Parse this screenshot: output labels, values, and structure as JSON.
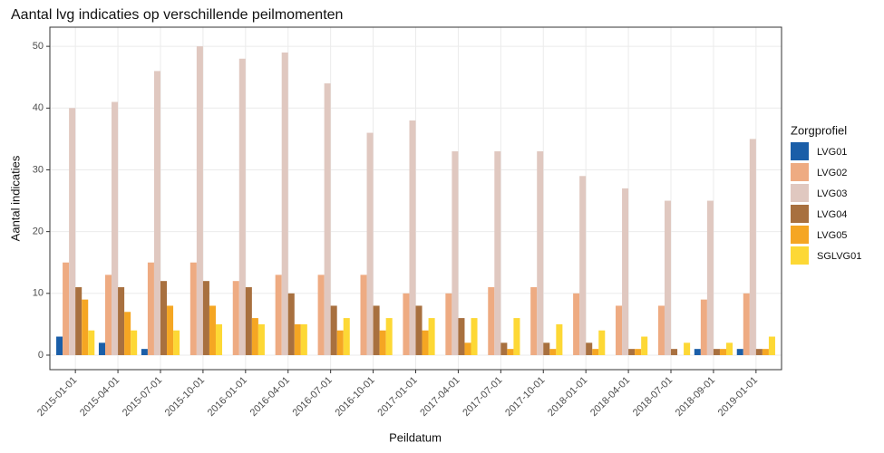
{
  "chart_data": {
    "type": "bar",
    "title": "Aantal lvg indicaties op verschillende peilmomenten",
    "x_label": "Peildatum",
    "y_label": "Aantal indicaties",
    "legend_title": "Zorgprofiel",
    "categories": [
      "2015-01-01",
      "2015-04-01",
      "2015-07-01",
      "2015-10-01",
      "2016-01-01",
      "2016-04-01",
      "2016-07-01",
      "2016-10-01",
      "2017-01-01",
      "2017-04-01",
      "2017-07-01",
      "2017-10-01",
      "2018-01-01",
      "2018-04-01",
      "2018-07-01",
      "2018-09-01",
      "2019-01-01"
    ],
    "series": [
      {
        "name": "LVG01",
        "color": "#1a5ea8",
        "values": [
          3,
          2,
          1,
          null,
          null,
          null,
          null,
          null,
          null,
          null,
          null,
          null,
          null,
          null,
          null,
          1,
          1
        ]
      },
      {
        "name": "LVG02",
        "color": "#eeab82",
        "values": [
          15,
          13,
          15,
          15,
          12,
          13,
          13,
          13,
          10,
          10,
          11,
          11,
          10,
          8,
          8,
          9,
          10
        ]
      },
      {
        "name": "LVG03",
        "color": "#e0c8c0",
        "values": [
          40,
          41,
          46,
          50,
          48,
          49,
          44,
          36,
          38,
          33,
          33,
          33,
          29,
          27,
          25,
          25,
          35
        ]
      },
      {
        "name": "LVG04",
        "color": "#a8703f",
        "values": [
          11,
          11,
          12,
          12,
          11,
          10,
          8,
          8,
          8,
          6,
          2,
          2,
          2,
          1,
          1,
          1,
          1
        ]
      },
      {
        "name": "LVG05",
        "color": "#f5a623",
        "values": [
          9,
          7,
          8,
          8,
          6,
          5,
          4,
          4,
          4,
          2,
          1,
          1,
          1,
          1,
          null,
          1,
          1
        ]
      },
      {
        "name": "SGLVG01",
        "color": "#fdd835",
        "values": [
          4,
          4,
          4,
          5,
          5,
          5,
          6,
          6,
          6,
          6,
          6,
          5,
          4,
          3,
          2,
          2,
          3
        ]
      }
    ],
    "ylim": [
      -2.35,
      53.1
    ],
    "yticks": [
      0,
      10,
      20,
      30,
      40,
      50
    ],
    "grid": true
  }
}
